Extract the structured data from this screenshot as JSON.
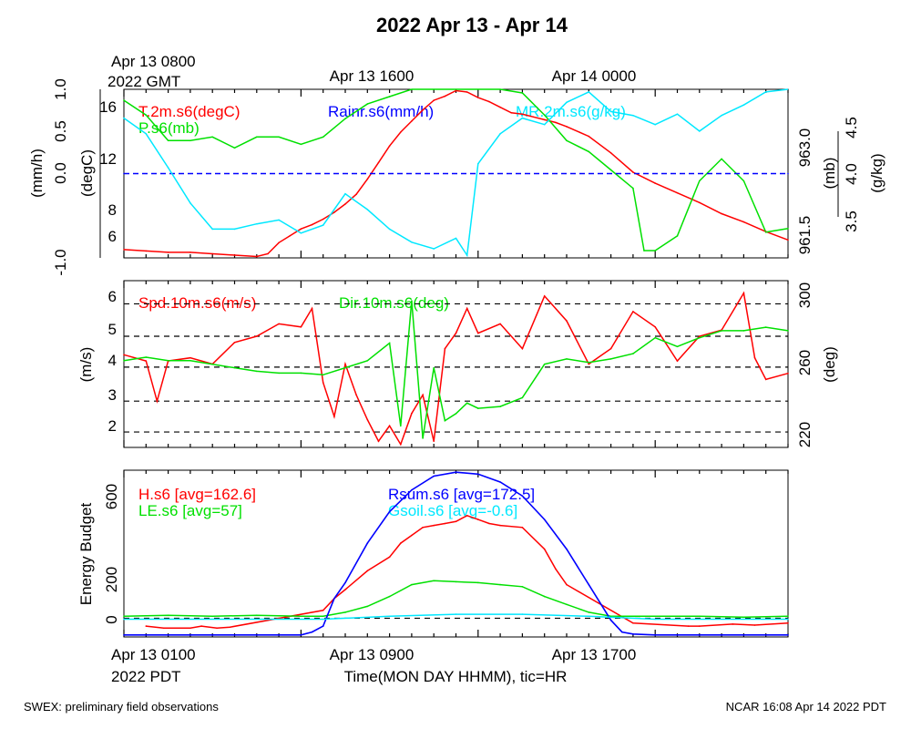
{
  "title": "2022 Apr 13 - Apr 14",
  "top_time_labels": {
    "left_line1": "Apr 13 0800",
    "left_line2": "2022 GMT",
    "mid": "Apr 13 1600",
    "right": "Apr 14 0000"
  },
  "bottom_time_labels": {
    "left_line1": "Apr 13 0100",
    "left_line2": "2022 PDT",
    "mid": "Apr 13 0900",
    "right": "Apr 13 1700"
  },
  "xlabel": "Time(MON DAY HHMM), tic=HR",
  "footer_left": "SWEX: preliminary field observations",
  "footer_right": "NCAR 16:08 Apr 14 2022 PDT",
  "colors": {
    "red": "#ff0000",
    "green": "#00e000",
    "blue": "#0000ff",
    "cyan": "#00e8ff",
    "black": "#000000"
  },
  "chart_data": [
    {
      "type": "line",
      "panel": "temperature-rain-pressure-mixing-ratio",
      "x_unit": "hours since Apr 13 0100 PDT",
      "xlim": [
        0,
        30
      ],
      "legend": [
        "T.2m.s6(degC)",
        "P.s6(mb)",
        "Rainr.s6(mm/h)",
        "MR.2m.s6(g/kg)"
      ],
      "axes": {
        "rain": {
          "label": "(mm/h)",
          "ticks": [
            "-1.0",
            "0.0",
            "0.5",
            "1.0"
          ],
          "ylim": [
            -1.0,
            1.0
          ]
        },
        "temp": {
          "label": "(degC)",
          "ticks": [
            "6",
            "8",
            "12",
            "16"
          ],
          "ylim": [
            4.9,
            17.1
          ]
        },
        "pressure": {
          "label": "(mb)",
          "ticks": [
            "961.5",
            "963.0"
          ],
          "ylim": [
            961.25,
            963.55
          ]
        },
        "mixing_ratio": {
          "label": "(g/kg)",
          "ticks": [
            "3.5",
            "4.0",
            "4.5"
          ],
          "ylim": [
            3.33,
            4.62
          ]
        }
      },
      "series": [
        {
          "name": "T.2m.s6(degC)",
          "axis": "temp",
          "color": "red",
          "x": [
            0,
            1,
            2,
            3,
            4,
            5,
            6,
            6.5,
            7,
            7.5,
            8,
            8.5,
            9,
            9.5,
            10,
            10.5,
            11,
            11.5,
            12,
            12.5,
            13,
            13.5,
            14,
            14.5,
            15,
            15.5,
            16,
            16.5,
            17,
            17.5,
            18,
            18.5,
            19,
            19.5,
            20,
            21,
            22,
            23,
            24,
            25,
            26,
            27,
            28,
            29,
            30
          ],
          "y": [
            5.5,
            5.4,
            5.3,
            5.3,
            5.2,
            5.1,
            5.0,
            5.2,
            6.0,
            6.5,
            7.0,
            7.3,
            7.7,
            8.2,
            8.8,
            9.5,
            10.6,
            11.8,
            13.0,
            14.0,
            14.8,
            15.6,
            16.3,
            16.6,
            17.0,
            16.9,
            16.5,
            16.2,
            15.8,
            15.4,
            15.3,
            15.1,
            14.9,
            14.7,
            14.4,
            13.7,
            12.5,
            11.1,
            10.3,
            9.6,
            8.9,
            8.1,
            7.5,
            6.8,
            6.2
          ]
        },
        {
          "name": "P.s6(mb)",
          "axis": "pressure",
          "color": "green",
          "x": [
            0,
            1,
            2,
            3,
            4,
            5,
            6,
            7,
            8,
            9,
            10,
            11,
            12,
            13,
            14,
            15,
            16,
            17,
            18,
            19,
            20,
            21,
            22,
            23,
            23.5,
            24,
            25,
            26,
            27,
            28,
            29,
            30
          ],
          "y": [
            963.4,
            963.2,
            962.85,
            962.85,
            962.9,
            962.75,
            962.9,
            962.9,
            962.8,
            962.9,
            963.15,
            963.35,
            963.45,
            963.7,
            963.85,
            963.85,
            963.7,
            963.6,
            963.5,
            963.2,
            962.85,
            962.7,
            962.45,
            962.2,
            961.35,
            961.35,
            961.55,
            962.3,
            962.6,
            962.3,
            961.6,
            961.65
          ]
        },
        {
          "name": "Rainr.s6(mm/h)",
          "axis": "rain",
          "color": "blue",
          "x": [
            0,
            30
          ],
          "y": [
            0.0,
            0.0
          ]
        },
        {
          "name": "MR.2m.s6(g/kg)",
          "axis": "mixing_ratio",
          "color": "cyan",
          "x": [
            0,
            1,
            2,
            3,
            4,
            5,
            6,
            7,
            8,
            9,
            10,
            11,
            12,
            13,
            14,
            15,
            15.5,
            16,
            17,
            18,
            19,
            20,
            21,
            22,
            23,
            24,
            25,
            26,
            27,
            28,
            29,
            30
          ],
          "y": [
            4.4,
            4.28,
            4.02,
            3.75,
            3.55,
            3.55,
            3.59,
            3.62,
            3.52,
            3.58,
            3.82,
            3.7,
            3.55,
            3.45,
            3.4,
            3.48,
            3.35,
            4.05,
            4.28,
            4.4,
            4.35,
            4.52,
            4.6,
            4.45,
            4.42,
            4.35,
            4.43,
            4.3,
            4.42,
            4.5,
            4.6,
            4.7
          ]
        }
      ]
    },
    {
      "type": "line",
      "panel": "wind-speed-direction",
      "x_unit": "hours since Apr 13 0100 PDT",
      "xlim": [
        0,
        30
      ],
      "legend": [
        "Spd.10m.s6(m/s)",
        "Dir.10m.s6(deg)"
      ],
      "axes": {
        "speed": {
          "label": "(m/s)",
          "ticks": [
            "2",
            "3",
            "4",
            "5",
            "6"
          ],
          "ylim": [
            1.3,
            6.7
          ]
        },
        "direction": {
          "label": "(deg)",
          "ticks": [
            "220",
            "260",
            "300"
          ],
          "ylim": [
            212.8,
            307.4
          ]
        }
      },
      "series": [
        {
          "name": "Spd.10m.s6(m/s)",
          "axis": "speed",
          "color": "red",
          "x": [
            0,
            1,
            1.5,
            2,
            3,
            4,
            5,
            6,
            7,
            8,
            8.5,
            9,
            9.5,
            10,
            10.5,
            11,
            11.5,
            12,
            12.5,
            13,
            13.5,
            14,
            14.5,
            15,
            15.5,
            16,
            17,
            18,
            19,
            20,
            21,
            22,
            23,
            24,
            25,
            26,
            27,
            28,
            28.5,
            29,
            30
          ],
          "y": [
            4.3,
            4.1,
            2.8,
            4.1,
            4.2,
            4.0,
            4.7,
            4.9,
            5.3,
            5.2,
            5.8,
            3.4,
            2.3,
            4.0,
            3.0,
            2.2,
            1.5,
            2.0,
            1.4,
            2.4,
            3.0,
            1.5,
            4.5,
            5.0,
            5.8,
            5.0,
            5.3,
            4.5,
            6.2,
            5.4,
            4.0,
            4.5,
            5.7,
            5.2,
            4.1,
            4.9,
            5.1,
            6.3,
            4.2,
            3.5,
            3.7
          ]
        },
        {
          "name": "Dir.10m.s6(deg)",
          "axis": "direction",
          "color": "green",
          "x": [
            0,
            1,
            2,
            3,
            4,
            5,
            6,
            7,
            8,
            9,
            10,
            11,
            12,
            12.5,
            13,
            13.5,
            14,
            14.5,
            15,
            15.5,
            16,
            17,
            18,
            19,
            20,
            21,
            22,
            23,
            24,
            25,
            26,
            27,
            28,
            29,
            30
          ],
          "y": [
            262,
            264,
            262,
            262,
            260,
            258,
            256,
            255,
            255,
            254,
            258,
            262,
            272,
            225,
            296,
            218,
            258,
            228,
            232,
            238,
            235,
            236,
            241,
            260,
            263,
            261,
            263,
            266,
            275,
            270,
            275,
            279,
            279,
            281,
            279
          ]
        }
      ],
      "reference_lines": {
        "speed": [
          1.8,
          2.8,
          3.9,
          4.9,
          5.95
        ]
      }
    },
    {
      "type": "line",
      "panel": "energy-budget",
      "x_unit": "hours since Apr 13 0100 PDT",
      "xlim": [
        0,
        30
      ],
      "ylabel": "Energy Budget",
      "legend": [
        "H.s6 [avg=162.6]",
        "LE.s6 [avg=57]",
        "Rsum.s6 [avg=172.5]",
        "Gsoil.s6 [avg=-0.6]"
      ],
      "axes": {
        "energy": {
          "ticks": [
            "0",
            "200",
            "600"
          ],
          "ylim": [
            -95,
            750
          ]
        }
      },
      "series": [
        {
          "name": "H.s6 [avg=162.6]",
          "axis": "energy",
          "color": "red",
          "x": [
            1,
            1.8,
            3,
            3.5,
            4.2,
            4.8,
            9,
            9.5,
            10,
            11,
            12,
            12.5,
            13,
            13.5,
            14,
            14.5,
            15,
            15.5,
            16,
            16.5,
            17,
            18,
            19,
            19.5,
            20,
            23,
            25.5,
            26,
            27.5,
            28.5,
            30
          ],
          "y": [
            -40,
            -50,
            -50,
            -40,
            -50,
            -45,
            40,
            100,
            145,
            240,
            310,
            380,
            420,
            460,
            470,
            480,
            490,
            520,
            500,
            480,
            470,
            460,
            350,
            250,
            170,
            -25,
            -40,
            -40,
            -30,
            -35,
            -25
          ]
        },
        {
          "name": "LE.s6 [avg=57]",
          "axis": "energy",
          "color": "green",
          "x": [
            0,
            2,
            4,
            6,
            8,
            9,
            10,
            11,
            12,
            13,
            14,
            15,
            16,
            17,
            18,
            19,
            20,
            21,
            22,
            24,
            26,
            28,
            30
          ],
          "y": [
            10,
            15,
            10,
            15,
            10,
            10,
            30,
            60,
            110,
            170,
            190,
            185,
            180,
            170,
            160,
            110,
            70,
            30,
            10,
            10,
            10,
            5,
            10
          ]
        },
        {
          "name": "Rsum.s6 [avg=172.5]",
          "axis": "energy",
          "color": "blue",
          "x": [
            0,
            8,
            8.5,
            9,
            9.5,
            10,
            11,
            12,
            13,
            14,
            15,
            16,
            17,
            18,
            19,
            20,
            21,
            22,
            22.5,
            23,
            24,
            30
          ],
          "y": [
            -85,
            -85,
            -70,
            -40,
            100,
            180,
            380,
            540,
            650,
            720,
            740,
            730,
            690,
            620,
            500,
            350,
            170,
            -10,
            -70,
            -80,
            -85,
            -85
          ]
        },
        {
          "name": "Gsoil.s6 [avg=-0.6]",
          "axis": "energy",
          "color": "cyan",
          "x": [
            0,
            9,
            12,
            15,
            18,
            21,
            24,
            30
          ],
          "y": [
            -5,
            -5,
            10,
            20,
            20,
            10,
            -5,
            -5
          ]
        }
      ],
      "reference_lines": {
        "energy": [
          0
        ]
      }
    }
  ]
}
